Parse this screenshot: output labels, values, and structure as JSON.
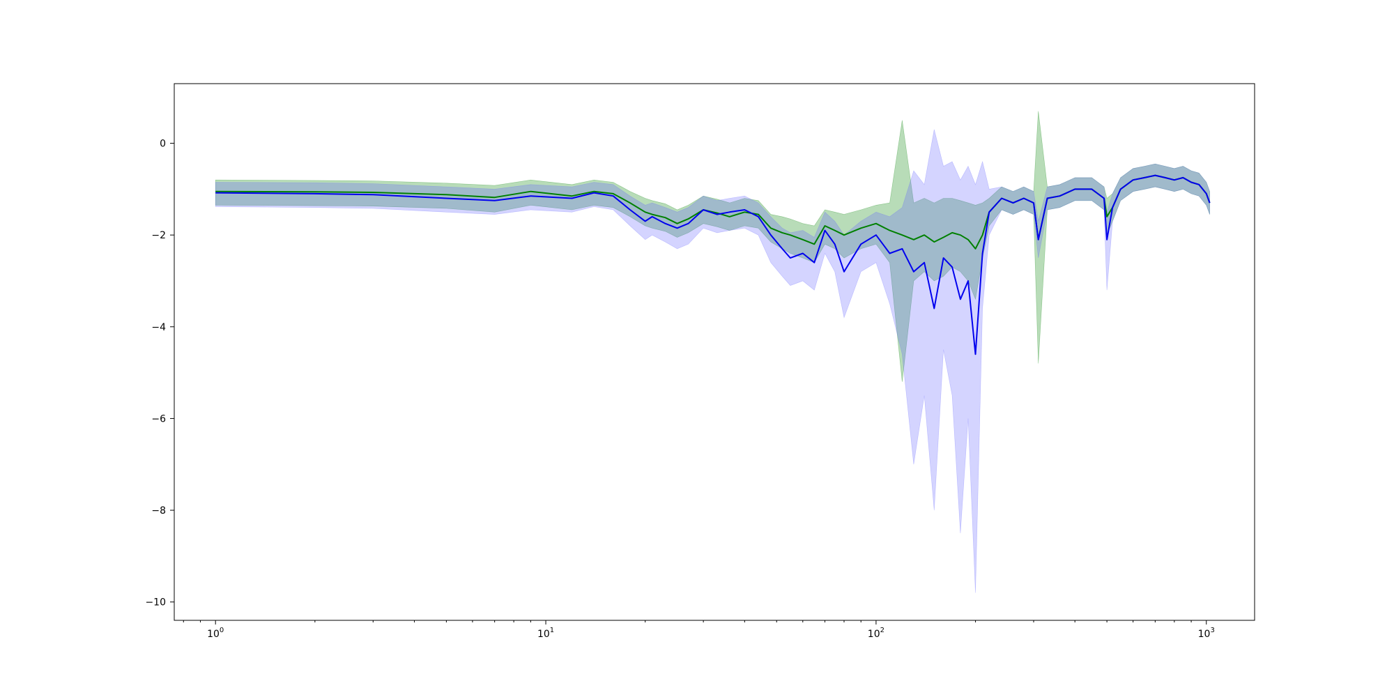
{
  "chart_data": {
    "type": "line",
    "title": "",
    "xlabel": "",
    "ylabel": "",
    "x_scale": "log",
    "xlim": [
      0.75,
      1400
    ],
    "ylim": [
      -10.4,
      1.3
    ],
    "grid": false,
    "legend": "none",
    "x_ticks": [
      {
        "value": 1,
        "base": "10",
        "exp": "0"
      },
      {
        "value": 10,
        "base": "10",
        "exp": "1"
      },
      {
        "value": 100,
        "base": "10",
        "exp": "2"
      },
      {
        "value": 1000,
        "base": "10",
        "exp": "3"
      }
    ],
    "y_ticks": [
      {
        "value": 0,
        "label": "0"
      },
      {
        "value": -2,
        "label": "−2"
      },
      {
        "value": -4,
        "label": "−4"
      },
      {
        "value": -6,
        "label": "−6"
      },
      {
        "value": -8,
        "label": "−8"
      },
      {
        "value": -10,
        "label": "−10"
      }
    ],
    "x": [
      1,
      2,
      3,
      5,
      7,
      9,
      12,
      14,
      16,
      18,
      20,
      21,
      23,
      25,
      27,
      30,
      33,
      36,
      40,
      44,
      48,
      52,
      55,
      60,
      65,
      70,
      75,
      80,
      90,
      100,
      110,
      120,
      130,
      140,
      150,
      160,
      170,
      180,
      190,
      200,
      210,
      220,
      240,
      260,
      280,
      300,
      310,
      330,
      360,
      400,
      450,
      490,
      500,
      520,
      550,
      600,
      650,
      700,
      750,
      800,
      850,
      900,
      950,
      1000,
      1024
    ],
    "series": [
      {
        "color": "#008000",
        "band_color": "#008000",
        "values": [
          -1.05,
          -1.06,
          -1.07,
          -1.12,
          -1.18,
          -1.05,
          -1.15,
          -1.05,
          -1.1,
          -1.3,
          -1.5,
          -1.55,
          -1.62,
          -1.75,
          -1.65,
          -1.45,
          -1.52,
          -1.6,
          -1.5,
          -1.55,
          -1.85,
          -1.95,
          -2.0,
          -2.1,
          -2.2,
          -1.8,
          -1.9,
          -2.0,
          -1.85,
          -1.75,
          -1.9,
          -2.0,
          -2.1,
          -2.0,
          -2.15,
          -2.05,
          -1.95,
          -2.0,
          -2.1,
          -2.3,
          -2.0,
          -1.5,
          -1.2,
          -1.3,
          -1.2,
          -1.3,
          -2.1,
          -1.2,
          -1.15,
          -1.0,
          -1.0,
          -1.2,
          -1.6,
          -1.4,
          -1.0,
          -0.8,
          -0.75,
          -0.7,
          -0.75,
          -0.8,
          -0.75,
          -0.85,
          -0.9,
          -1.1,
          -1.3
        ],
        "lower": [
          -1.35,
          -1.36,
          -1.37,
          -1.42,
          -1.5,
          -1.35,
          -1.45,
          -1.35,
          -1.4,
          -1.6,
          -1.8,
          -1.85,
          -1.92,
          -2.05,
          -1.95,
          -1.75,
          -1.82,
          -1.9,
          -1.8,
          -1.85,
          -2.15,
          -2.3,
          -2.4,
          -2.5,
          -2.6,
          -2.2,
          -2.3,
          -2.5,
          -2.3,
          -2.2,
          -2.6,
          -5.2,
          -3.0,
          -2.8,
          -3.0,
          -2.9,
          -2.7,
          -2.8,
          -3.0,
          -3.4,
          -2.5,
          -1.8,
          -1.45,
          -1.55,
          -1.45,
          -1.55,
          -4.8,
          -1.45,
          -1.4,
          -1.25,
          -1.25,
          -1.45,
          -2.0,
          -1.7,
          -1.25,
          -1.05,
          -1.0,
          -0.95,
          -1.0,
          -1.05,
          -1.0,
          -1.1,
          -1.15,
          -1.35,
          -1.55
        ],
        "upper": [
          -0.8,
          -0.81,
          -0.82,
          -0.87,
          -0.92,
          -0.8,
          -0.9,
          -0.8,
          -0.85,
          -1.05,
          -1.2,
          -1.25,
          -1.32,
          -1.45,
          -1.35,
          -1.15,
          -1.22,
          -1.3,
          -1.2,
          -1.25,
          -1.55,
          -1.6,
          -1.65,
          -1.75,
          -1.8,
          -1.45,
          -1.5,
          -1.55,
          -1.45,
          -1.35,
          -1.3,
          0.5,
          -1.3,
          -1.2,
          -1.3,
          -1.2,
          -1.2,
          -1.25,
          -1.3,
          -1.35,
          -1.3,
          -1.2,
          -0.95,
          -1.05,
          -0.95,
          -1.05,
          0.7,
          -0.95,
          -0.9,
          -0.75,
          -0.75,
          -0.95,
          -1.2,
          -1.1,
          -0.75,
          -0.55,
          -0.5,
          -0.45,
          -0.5,
          -0.55,
          -0.5,
          -0.6,
          -0.65,
          -0.85,
          -1.05
        ]
      },
      {
        "color": "#0000ee",
        "band_color": "#6666ff",
        "values": [
          -1.08,
          -1.1,
          -1.12,
          -1.2,
          -1.25,
          -1.15,
          -1.2,
          -1.08,
          -1.15,
          -1.45,
          -1.7,
          -1.6,
          -1.75,
          -1.85,
          -1.75,
          -1.45,
          -1.55,
          -1.5,
          -1.45,
          -1.6,
          -2.0,
          -2.3,
          -2.5,
          -2.4,
          -2.6,
          -1.9,
          -2.2,
          -2.8,
          -2.2,
          -2.0,
          -2.4,
          -2.3,
          -2.8,
          -2.6,
          -3.6,
          -2.5,
          -2.7,
          -3.4,
          -3.0,
          -4.6,
          -2.4,
          -1.5,
          -1.2,
          -1.3,
          -1.2,
          -1.3,
          -2.1,
          -1.2,
          -1.15,
          -1.0,
          -1.0,
          -1.2,
          -2.1,
          -1.4,
          -1.0,
          -0.8,
          -0.75,
          -0.7,
          -0.75,
          -0.8,
          -0.75,
          -0.85,
          -0.9,
          -1.1,
          -1.3
        ],
        "lower": [
          -1.38,
          -1.4,
          -1.42,
          -1.5,
          -1.55,
          -1.45,
          -1.5,
          -1.38,
          -1.45,
          -1.8,
          -2.1,
          -2.0,
          -2.15,
          -2.3,
          -2.2,
          -1.85,
          -1.95,
          -1.9,
          -1.85,
          -2.0,
          -2.6,
          -2.9,
          -3.1,
          -3.0,
          -3.2,
          -2.4,
          -2.8,
          -3.8,
          -2.8,
          -2.6,
          -3.5,
          -4.6,
          -7.0,
          -5.5,
          -8.0,
          -4.5,
          -5.5,
          -8.5,
          -6.0,
          -9.8,
          -3.6,
          -2.0,
          -1.45,
          -1.55,
          -1.45,
          -1.55,
          -2.5,
          -1.45,
          -1.4,
          -1.25,
          -1.25,
          -1.45,
          -3.2,
          -1.7,
          -1.25,
          -1.05,
          -1.0,
          -0.95,
          -1.0,
          -1.05,
          -1.0,
          -1.1,
          -1.15,
          -1.35,
          -1.55
        ],
        "upper": [
          -0.85,
          -0.86,
          -0.88,
          -0.95,
          -1.0,
          -0.9,
          -0.95,
          -0.85,
          -0.9,
          -1.15,
          -1.35,
          -1.3,
          -1.4,
          -1.5,
          -1.4,
          -1.15,
          -1.25,
          -1.2,
          -1.15,
          -1.3,
          -1.6,
          -1.85,
          -1.95,
          -1.9,
          -2.05,
          -1.5,
          -1.7,
          -2.0,
          -1.7,
          -1.5,
          -1.6,
          -1.4,
          -0.6,
          -0.9,
          0.3,
          -0.5,
          -0.4,
          -0.8,
          -0.5,
          -0.9,
          -0.4,
          -1.0,
          -0.95,
          -1.05,
          -0.95,
          -1.05,
          -1.7,
          -0.95,
          -0.9,
          -0.75,
          -0.75,
          -0.95,
          -1.5,
          -1.1,
          -0.75,
          -0.55,
          -0.5,
          -0.45,
          -0.5,
          -0.55,
          -0.5,
          -0.6,
          -0.65,
          -0.85,
          -1.05
        ]
      }
    ]
  }
}
